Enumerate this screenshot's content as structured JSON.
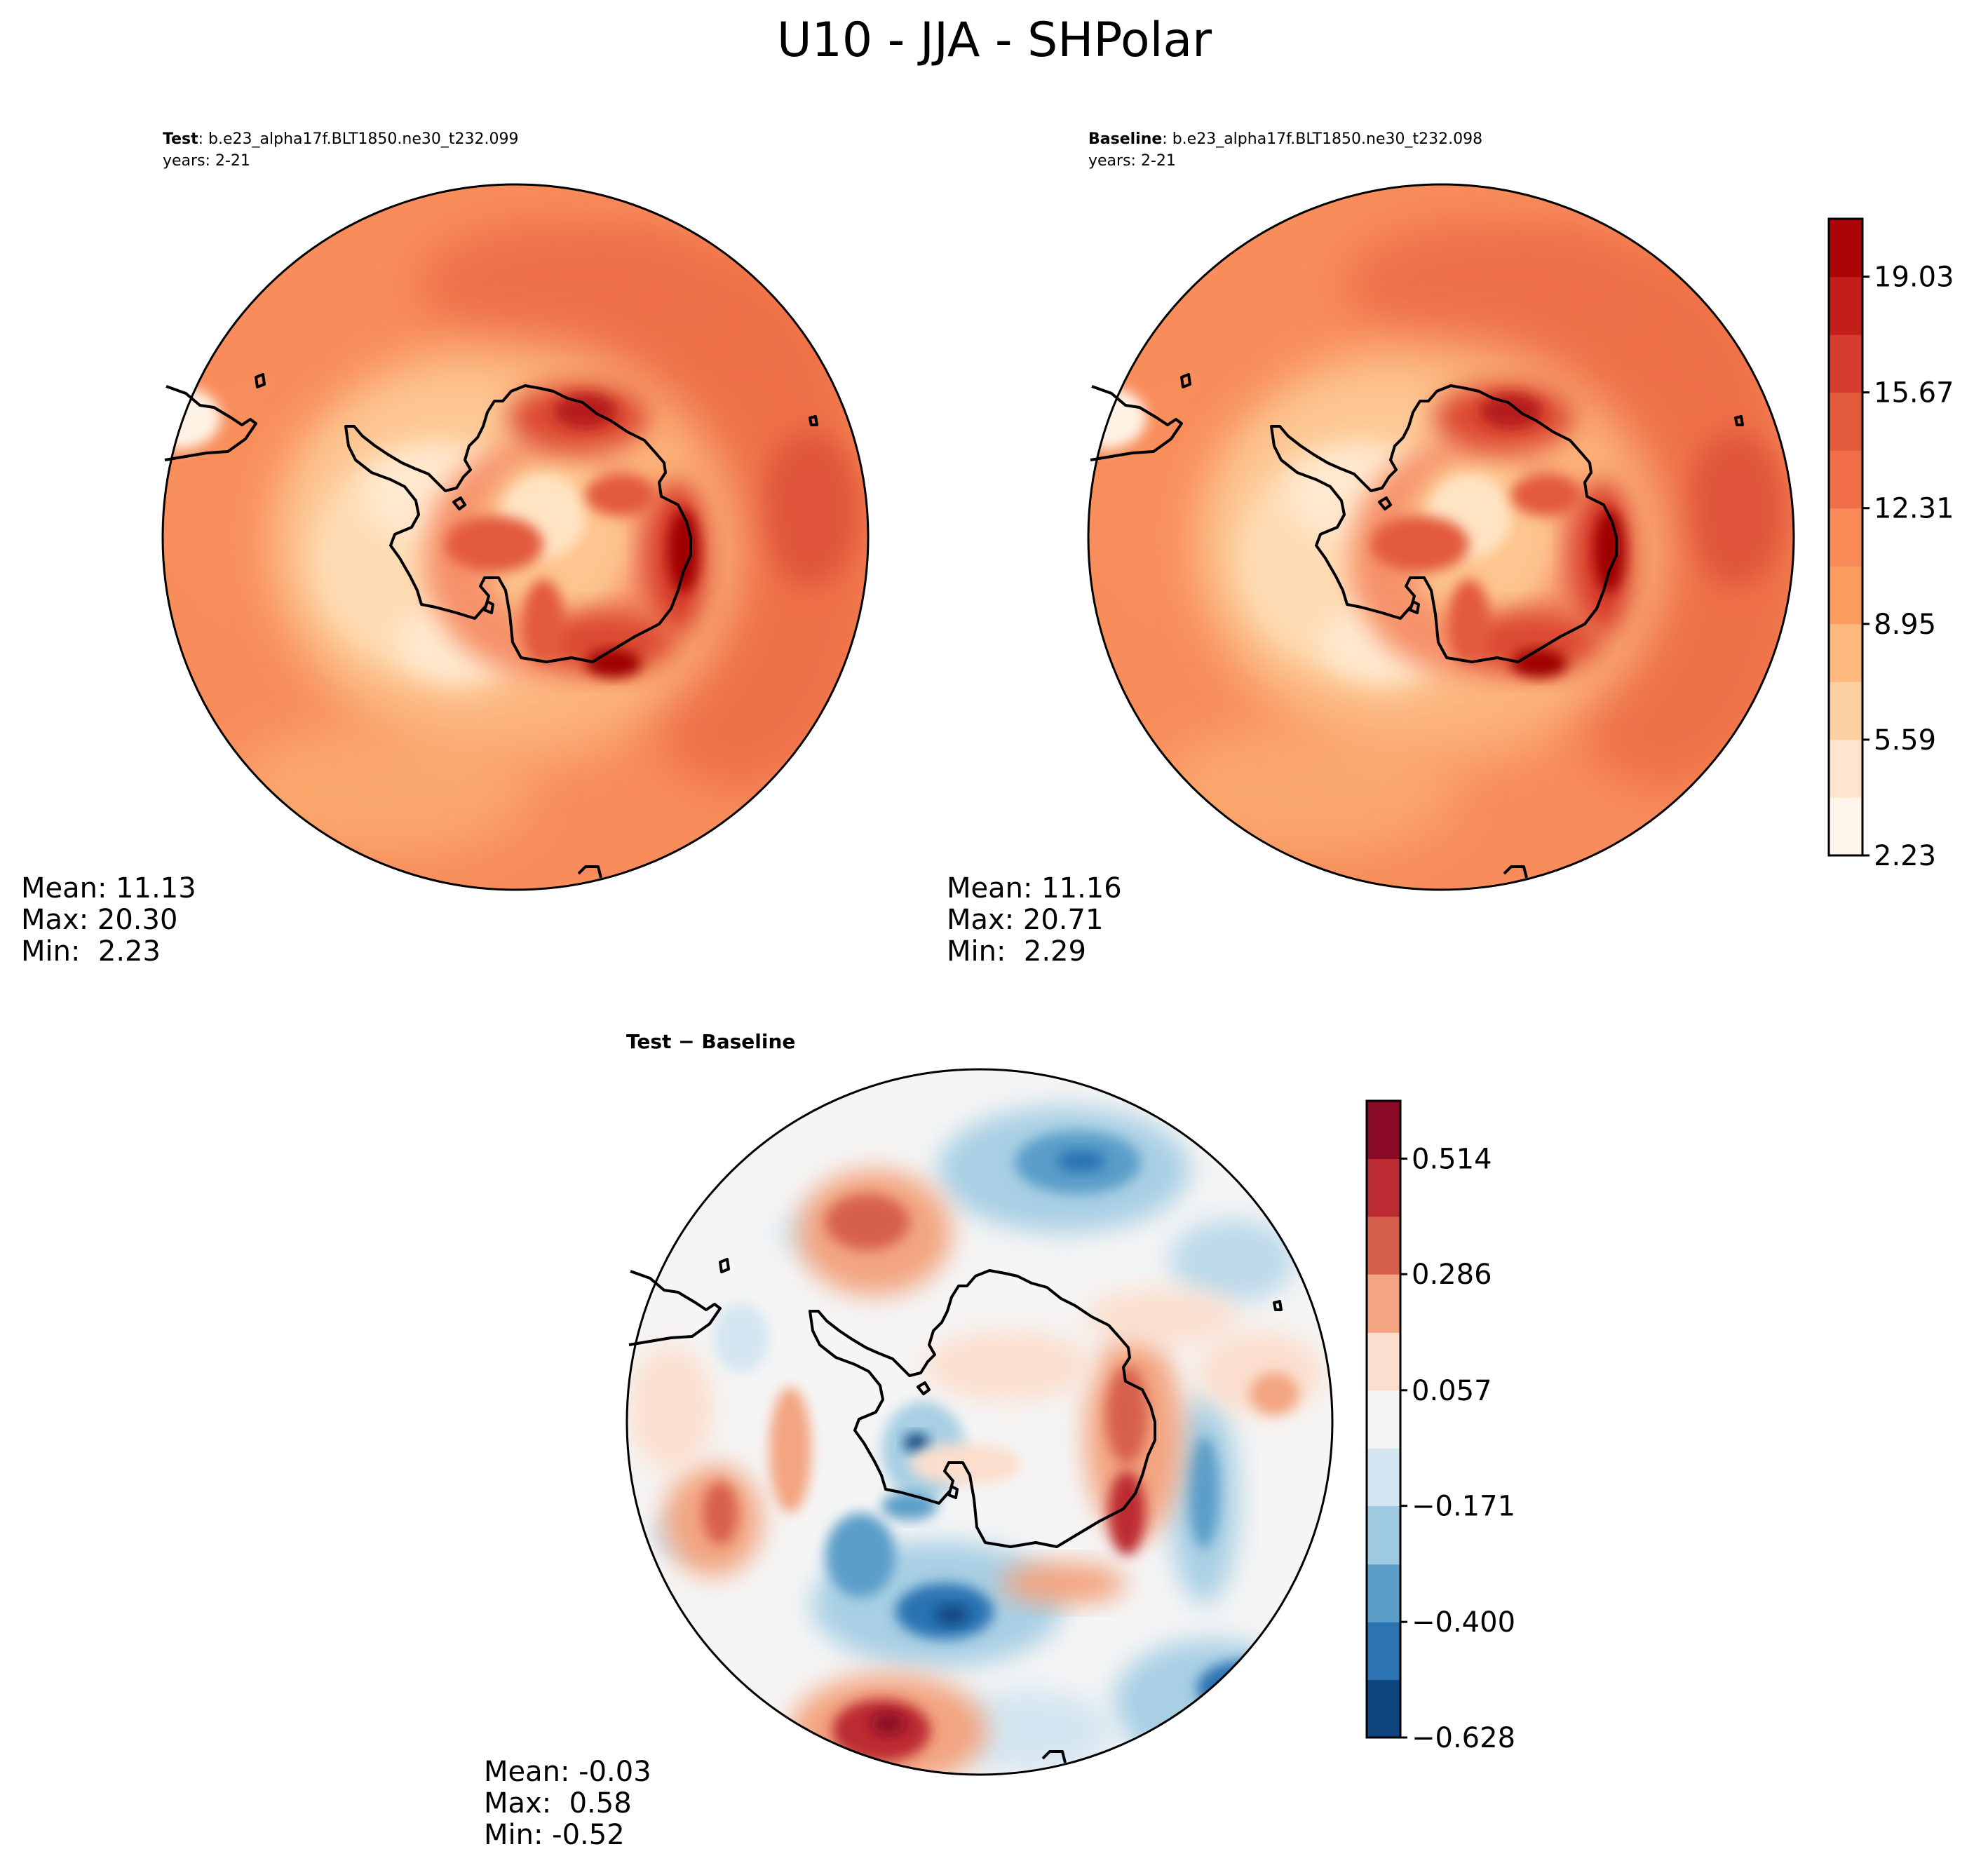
{
  "figure": {
    "title": "U10 - JJA - SHPolar"
  },
  "panels": {
    "test": {
      "label_bold": "Test",
      "label_rest": ": b.e23_alpha17f.BLT1850.ne30_t232.099",
      "years": "years: 2-21",
      "stats": {
        "mean": "Mean: 11.13",
        "max": "Max: 20.30",
        "min": "Min:  2.23"
      }
    },
    "baseline": {
      "label_bold": "Baseline",
      "label_rest": ": b.e23_alpha17f.BLT1850.ne30_t232.098",
      "years": "years: 2-21",
      "stats": {
        "mean": "Mean: 11.16",
        "max": "Max: 20.71",
        "min": "Min:  2.29"
      }
    },
    "diff": {
      "label": "Test − Baseline",
      "stats": {
        "mean": "Mean: -0.03",
        "max": "Max:  0.58",
        "min": "Min: -0.52"
      }
    }
  },
  "chart_data": [
    {
      "type": "heatmap",
      "projection": "south-polar-stereographic",
      "name": "Test",
      "variable": "U10",
      "season": "JJA",
      "region": "SHPolar",
      "stats": {
        "mean": 11.13,
        "max": 20.3,
        "min": 2.23
      },
      "colorbar": "shared-absolute"
    },
    {
      "type": "heatmap",
      "projection": "south-polar-stereographic",
      "name": "Baseline",
      "variable": "U10",
      "season": "JJA",
      "region": "SHPolar",
      "stats": {
        "mean": 11.16,
        "max": 20.71,
        "min": 2.29
      },
      "colorbar": "shared-absolute"
    },
    {
      "type": "heatmap",
      "projection": "south-polar-stereographic",
      "name": "Test - Baseline",
      "stats": {
        "mean": -0.03,
        "max": 0.58,
        "min": -0.52
      },
      "colorbar": "difference"
    }
  ],
  "colorbars": {
    "absolute": {
      "min": 2.23,
      "max": 20.71,
      "levels": [
        2.23,
        3.91,
        5.59,
        7.27,
        8.95,
        10.63,
        12.31,
        13.99,
        15.67,
        17.35,
        19.03,
        20.71
      ],
      "tick_labels": [
        "2.23",
        "5.59",
        "8.95",
        "12.31",
        "15.67",
        "19.03"
      ],
      "tick_values": [
        2.23,
        5.59,
        8.95,
        12.31,
        15.67,
        19.03
      ],
      "colors": [
        "#fff5eb",
        "#fee6ce",
        "#fdd0a2",
        "#fdb97e",
        "#fc9d5f",
        "#f88a57",
        "#f26e49",
        "#e45a3d",
        "#d63d2e",
        "#c21e1a",
        "#ac0505",
        "#800000"
      ]
    },
    "difference": {
      "min": -0.628,
      "max": 0.628,
      "levels": [
        -0.628,
        -0.514,
        -0.4,
        -0.286,
        -0.171,
        -0.057,
        0.057,
        0.171,
        0.286,
        0.4,
        0.514,
        0.628
      ],
      "tick_labels": [
        "−0.628",
        "−0.400",
        "−0.171",
        "0.057",
        "0.286",
        "0.514"
      ],
      "tick_values": [
        -0.628,
        -0.4,
        -0.171,
        0.057,
        0.286,
        0.514
      ],
      "colors": [
        "#104680",
        "#2c73b2",
        "#5a9ec9",
        "#9dcae1",
        "#d4e6f1",
        "#f5f5f5",
        "#fbdecd",
        "#f3a480",
        "#d7604d",
        "#bc2a32",
        "#8a0a26"
      ]
    }
  }
}
